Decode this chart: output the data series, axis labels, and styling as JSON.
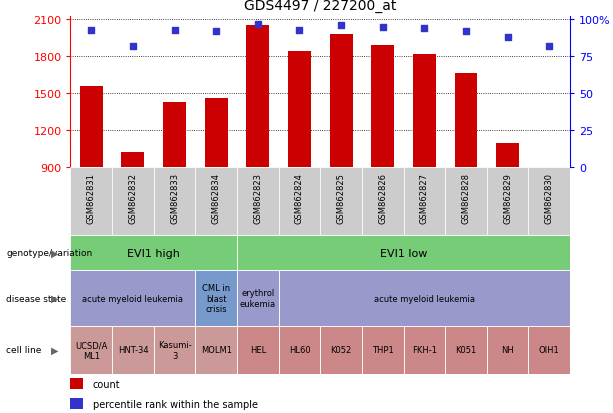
{
  "title": "GDS4497 / 227200_at",
  "samples": [
    "GSM862831",
    "GSM862832",
    "GSM862833",
    "GSM862834",
    "GSM862823",
    "GSM862824",
    "GSM862825",
    "GSM862826",
    "GSM862827",
    "GSM862828",
    "GSM862829",
    "GSM862830"
  ],
  "counts": [
    1560,
    1020,
    1430,
    1460,
    2050,
    1840,
    1980,
    1890,
    1820,
    1660,
    1090,
    870
  ],
  "percentiles": [
    93,
    82,
    93,
    92,
    97,
    93,
    96,
    95,
    94,
    92,
    88,
    82
  ],
  "ymin": 900,
  "ymax": 2100,
  "yticks": [
    900,
    1200,
    1500,
    1800,
    2100
  ],
  "bar_color": "#cc0000",
  "dot_color": "#3333cc",
  "right_yticks_pct": [
    0,
    25,
    50,
    75,
    100
  ],
  "right_ylabels": [
    "0",
    "25",
    "50",
    "75",
    "100%"
  ],
  "genotype_groups": [
    {
      "label": "EVI1 high",
      "start": 0,
      "end": 4,
      "color": "#77cc77"
    },
    {
      "label": "EVI1 low",
      "start": 4,
      "end": 12,
      "color": "#77cc77"
    }
  ],
  "disease_groups": [
    {
      "label": "acute myeloid leukemia",
      "start": 0,
      "end": 3,
      "color": "#9999cc"
    },
    {
      "label": "CML in\nblast\ncrisis",
      "start": 3,
      "end": 4,
      "color": "#7799cc"
    },
    {
      "label": "erythrol\neukemia",
      "start": 4,
      "end": 5,
      "color": "#9999cc"
    },
    {
      "label": "acute myeloid leukemia",
      "start": 5,
      "end": 12,
      "color": "#9999cc"
    }
  ],
  "cell_lines_left": [
    {
      "label": "UCSD/A\nML1",
      "start": 0,
      "end": 1,
      "color": "#cc9999"
    },
    {
      "label": "HNT-34",
      "start": 1,
      "end": 2,
      "color": "#cc9999"
    },
    {
      "label": "Kasumi-\n3",
      "start": 2,
      "end": 3,
      "color": "#cc9999"
    },
    {
      "label": "MOLM1",
      "start": 3,
      "end": 4,
      "color": "#cc9999"
    }
  ],
  "cell_lines_right": [
    {
      "label": "HEL",
      "start": 4,
      "end": 5,
      "color": "#cc8888"
    },
    {
      "label": "HL60",
      "start": 5,
      "end": 6,
      "color": "#cc8888"
    },
    {
      "label": "K052",
      "start": 6,
      "end": 7,
      "color": "#cc8888"
    },
    {
      "label": "THP1",
      "start": 7,
      "end": 8,
      "color": "#cc8888"
    },
    {
      "label": "FKH-1",
      "start": 8,
      "end": 9,
      "color": "#cc8888"
    },
    {
      "label": "K051",
      "start": 9,
      "end": 10,
      "color": "#cc8888"
    },
    {
      "label": "NH",
      "start": 10,
      "end": 11,
      "color": "#cc8888"
    },
    {
      "label": "OIH1",
      "start": 11,
      "end": 12,
      "color": "#cc8888"
    }
  ],
  "row_labels": [
    "genotype/variation",
    "disease state",
    "cell line"
  ],
  "xticklabel_bg": "#cccccc",
  "plot_bg": "#ffffff"
}
